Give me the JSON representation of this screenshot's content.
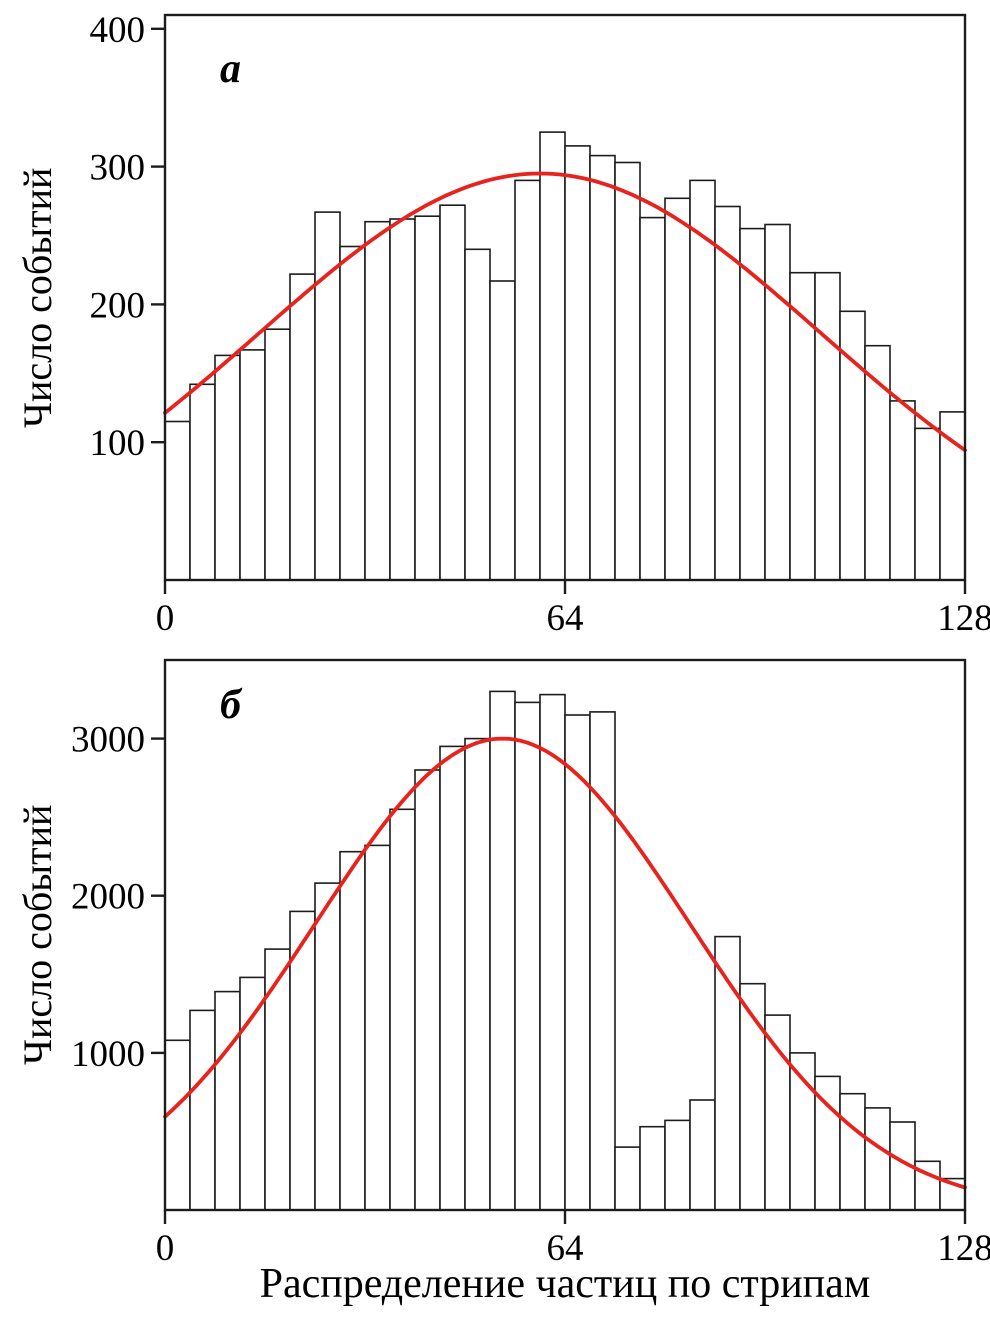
{
  "figure": {
    "background": "#ffffff",
    "text_color": "#000000"
  },
  "chart_data": [
    {
      "type": "bar",
      "subtype": "histogram-with-gaussian-fit",
      "panel_label": "а",
      "ylabel": "Число событий",
      "xlabel": "",
      "xlim": [
        0,
        128
      ],
      "ylim": [
        0,
        410
      ],
      "x_ticks": [
        0,
        64,
        128
      ],
      "y_ticks": [
        100,
        200,
        300,
        400
      ],
      "bin_start": 0,
      "bin_width": 4,
      "values": [
        115,
        142,
        163,
        167,
        182,
        222,
        267,
        242,
        260,
        262,
        264,
        272,
        240,
        217,
        290,
        325,
        315,
        308,
        303,
        263,
        277,
        290,
        271,
        255,
        258,
        223,
        223,
        195,
        170,
        130,
        110,
        122
      ],
      "fit_curve": {
        "type": "gaussian",
        "amplitude": 295,
        "center": 60,
        "sigma": 45
      },
      "legend": "none",
      "grid": "off",
      "colors": {
        "bar_fill": "#ffffff",
        "bar_stroke": "#1c1c1c",
        "curve": "#e8231d",
        "axis": "#1c1c1c"
      }
    },
    {
      "type": "bar",
      "subtype": "histogram-with-gaussian-fit",
      "panel_label": "б",
      "ylabel": "Число событий",
      "xlabel": "Распределение частиц по стрипам",
      "xlim": [
        0,
        128
      ],
      "ylim": [
        0,
        3500
      ],
      "x_ticks": [
        0,
        64,
        128
      ],
      "y_ticks": [
        1000,
        2000,
        3000
      ],
      "bin_start": 0,
      "bin_width": 4,
      "values": [
        1080,
        1270,
        1390,
        1480,
        1660,
        1900,
        2080,
        2280,
        2320,
        2550,
        2800,
        2950,
        3000,
        3300,
        3230,
        3280,
        3150,
        3170,
        400,
        530,
        570,
        700,
        1740,
        1440,
        1240,
        1000,
        850,
        740,
        650,
        560,
        310,
        200
      ],
      "fit_curve": {
        "type": "gaussian",
        "amplitude": 3000,
        "center": 54,
        "sigma": 30
      },
      "legend": "none",
      "grid": "off",
      "colors": {
        "bar_fill": "#ffffff",
        "bar_stroke": "#1c1c1c",
        "curve": "#e8231d",
        "axis": "#1c1c1c"
      }
    }
  ]
}
